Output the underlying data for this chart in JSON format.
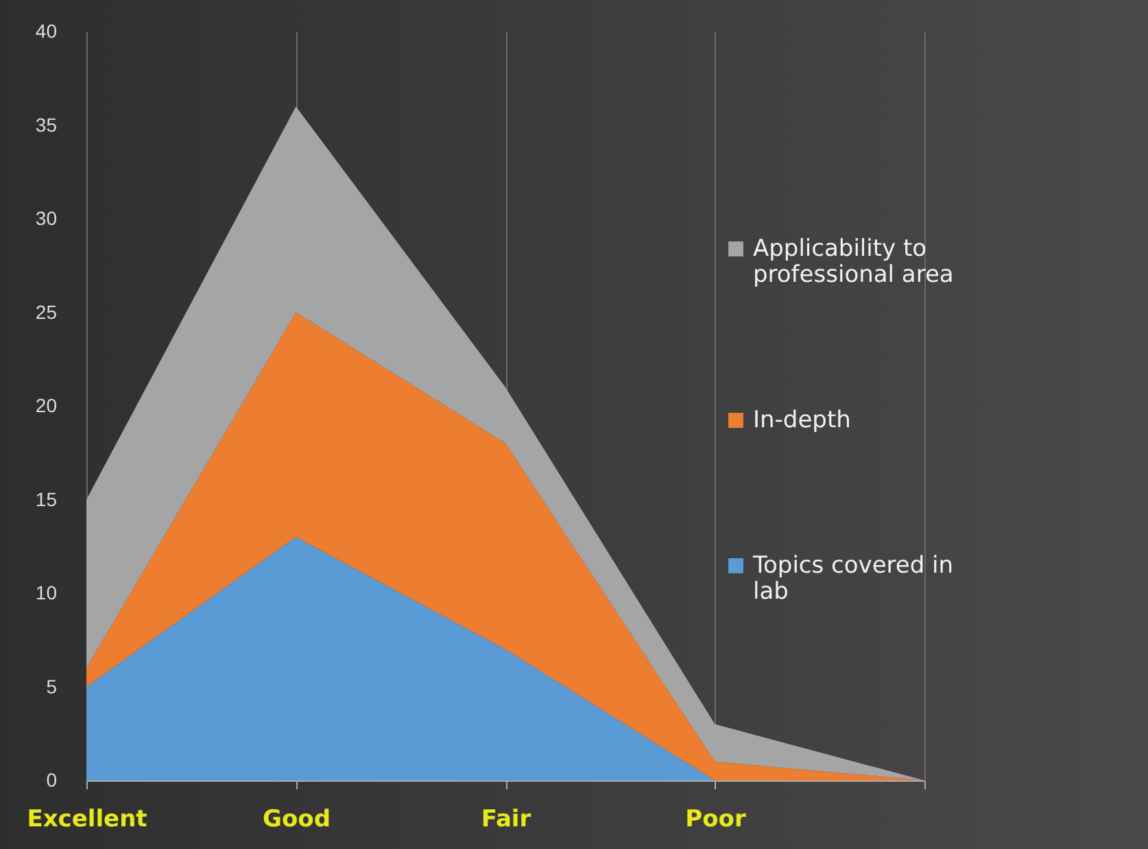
{
  "chart_data": {
    "type": "area",
    "stacked": true,
    "categories": [
      "Excellent",
      "Good",
      "Fair",
      "Poor",
      null
    ],
    "series": [
      {
        "name": "Topics covered in lab",
        "color": "#5b9bd5",
        "values": [
          5,
          13,
          7,
          0,
          0
        ]
      },
      {
        "name": "In-depth",
        "color": "#ed7d31",
        "values": [
          1,
          12,
          11,
          1,
          0
        ]
      },
      {
        "name": "Applicability to professional area",
        "color": "#a5a5a5",
        "values": [
          9,
          11,
          3,
          2,
          0
        ]
      }
    ],
    "ylim": [
      0,
      40
    ],
    "yticks": [
      0,
      5,
      10,
      15,
      20,
      25,
      30,
      35,
      40
    ],
    "grid": "x",
    "legend": "right"
  }
}
